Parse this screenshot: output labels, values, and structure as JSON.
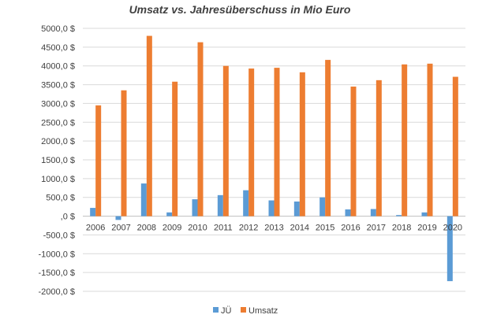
{
  "chart_data": {
    "type": "bar",
    "title": "Umsatz vs. Jahresüberschuss in Mio Euro",
    "xlabel": "",
    "ylabel": "",
    "categories": [
      "2006",
      "2007",
      "2008",
      "2009",
      "2010",
      "2011",
      "2012",
      "2013",
      "2014",
      "2015",
      "2016",
      "2017",
      "2018",
      "2019",
      "2020"
    ],
    "series": [
      {
        "name": "JÜ",
        "color": "#5b9bd5",
        "values": [
          220,
          -100,
          870,
          100,
          450,
          560,
          690,
          420,
          390,
          500,
          180,
          190,
          30,
          100,
          -1730
        ]
      },
      {
        "name": "Umsatz",
        "color": "#ed7d31",
        "values": [
          2950,
          3350,
          4800,
          3580,
          4630,
          4000,
          3930,
          3950,
          3830,
          4160,
          3450,
          3620,
          4040,
          4060,
          3710
        ]
      }
    ],
    "ylim": [
      -2000,
      5000
    ],
    "ytick_labels": [
      "-2000,0 $",
      "-1500,0 $",
      "-1000,0 $",
      "-500,0 $",
      ",0 $",
      "500,0 $",
      "1000,0 $",
      "1500,0 $",
      "2000,0 $",
      "2500,0 $",
      "3000,0 $",
      "3500,0 $",
      "4000,0 $",
      "4500,0 $",
      "5000,0 $"
    ],
    "ytick_values": [
      -2000,
      -1500,
      -1000,
      -500,
      0,
      500,
      1000,
      1500,
      2000,
      2500,
      3000,
      3500,
      4000,
      4500,
      5000
    ],
    "grid": true,
    "legend_position": "bottom"
  }
}
